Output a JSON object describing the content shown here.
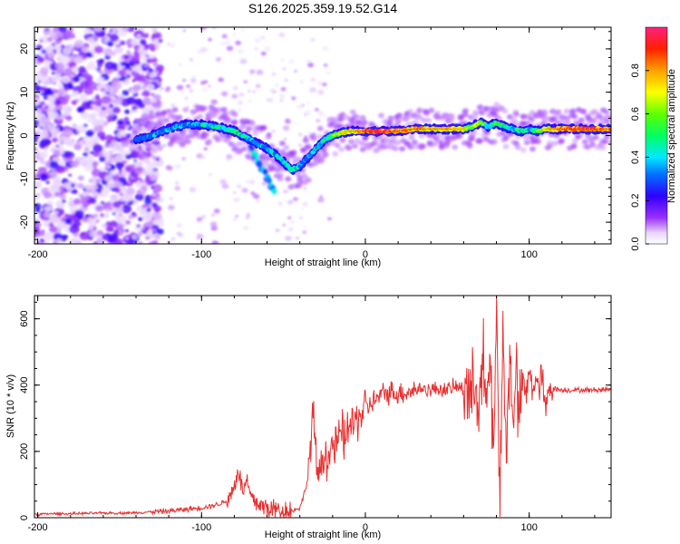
{
  "title": "S126.2025.359.19.52.G14",
  "chart_data": [
    {
      "type": "heatmap",
      "xlabel": "Height of straight line (km)",
      "ylabel": "Frequency (Hz)",
      "xlim": [
        -202,
        150
      ],
      "ylim": [
        -25,
        25
      ],
      "xticks": [
        -200,
        -100,
        0,
        100
      ],
      "xtick_labels": [
        "-200",
        "-100",
        "0",
        "100"
      ],
      "yticks": [
        -20,
        -10,
        0,
        10,
        20
      ],
      "ytick_labels": [
        "-20",
        "-10",
        "0",
        "10",
        "20"
      ],
      "colorbar": {
        "label": "Normalized spectral amplitude",
        "range": [
          0,
          1
        ],
        "ticks": [
          0.0,
          0.2,
          0.4,
          0.6,
          0.8
        ],
        "tick_labels": [
          "0.0",
          "0.2",
          "0.4",
          "0.6",
          "0.8"
        ]
      },
      "ridge": {
        "x": [
          -140,
          -130,
          -120,
          -110,
          -100,
          -90,
          -80,
          -70,
          -60,
          -50,
          -45,
          -40,
          -35,
          -30,
          -25,
          -20,
          -15,
          -10,
          0,
          10,
          20,
          30,
          40,
          50,
          60,
          65,
          70,
          75,
          80,
          85,
          90,
          95,
          100,
          105,
          110,
          120,
          130,
          140,
          150
        ],
        "y": [
          -1,
          0,
          1.5,
          2.5,
          2.5,
          2,
          1,
          -1,
          -3,
          -6,
          -8,
          -7,
          -5,
          -3,
          -1,
          0,
          0.5,
          1,
          1,
          1,
          1,
          1.5,
          1.5,
          1.5,
          1.5,
          2,
          3,
          2,
          3,
          2,
          1.5,
          1,
          1.5,
          1,
          1.5,
          1.5,
          1.5,
          1.5,
          1.5
        ],
        "amplitude": [
          0.25,
          0.4,
          0.45,
          0.4,
          0.45,
          0.5,
          0.55,
          0.45,
          0.4,
          0.55,
          0.5,
          0.4,
          0.45,
          0.5,
          0.5,
          0.6,
          0.7,
          0.75,
          0.9,
          0.95,
          0.85,
          0.85,
          0.8,
          0.8,
          0.75,
          0.6,
          0.7,
          0.55,
          0.6,
          0.55,
          0.5,
          0.55,
          0.5,
          0.6,
          0.75,
          0.85,
          0.9,
          0.9,
          0.85
        ]
      },
      "branch": {
        "x": [
          -70,
          -65,
          -60,
          -55
        ],
        "y": [
          -3,
          -6,
          -10,
          -14
        ]
      },
      "noise_region_x": [
        -202,
        -135
      ]
    },
    {
      "type": "line",
      "xlabel": "Height of straight line (km)",
      "ylabel": "SNR (10 * v/v)",
      "xlim": [
        -202,
        150
      ],
      "ylim": [
        0,
        670
      ],
      "xticks": [
        -200,
        -100,
        0,
        100
      ],
      "xtick_labels": [
        "-200",
        "-100",
        "0",
        "100"
      ],
      "yticks": [
        0,
        200,
        400,
        600
      ],
      "ytick_labels": [
        "0",
        "200",
        "400",
        "600"
      ],
      "series": [
        {
          "name": "SNR",
          "color": "#e83030",
          "x": [
            -202,
            -190,
            -180,
            -170,
            -160,
            -150,
            -140,
            -130,
            -120,
            -110,
            -100,
            -95,
            -90,
            -85,
            -80,
            -78,
            -75,
            -72,
            -70,
            -65,
            -60,
            -55,
            -50,
            -45,
            -40,
            -38,
            -35,
            -32,
            -30,
            -28,
            -25,
            -22,
            -20,
            -18,
            -15,
            -12,
            -10,
            -8,
            -5,
            -2,
            0,
            5,
            10,
            15,
            20,
            25,
            30,
            35,
            40,
            45,
            50,
            55,
            60,
            62,
            65,
            68,
            70,
            72,
            74,
            76,
            78,
            80,
            82,
            84,
            86,
            88,
            90,
            92,
            94,
            96,
            98,
            100,
            102,
            104,
            106,
            108,
            110,
            112,
            115,
            120,
            130,
            140,
            150
          ],
          "y": [
            10,
            12,
            12,
            13,
            14,
            14,
            15,
            18,
            20,
            25,
            30,
            35,
            40,
            50,
            90,
            150,
            80,
            110,
            60,
            40,
            30,
            25,
            22,
            20,
            30,
            60,
            120,
            320,
            150,
            140,
            200,
            180,
            230,
            200,
            260,
            230,
            290,
            270,
            300,
            320,
            330,
            350,
            370,
            380,
            375,
            380,
            385,
            390,
            385,
            390,
            385,
            395,
            390,
            420,
            350,
            430,
            380,
            460,
            300,
            500,
            200,
            660,
            40,
            600,
            150,
            480,
            330,
            450,
            280,
            420,
            360,
            440,
            400,
            410,
            390,
            430,
            300,
            400,
            390,
            385,
            385,
            385,
            388
          ]
        }
      ]
    }
  ]
}
